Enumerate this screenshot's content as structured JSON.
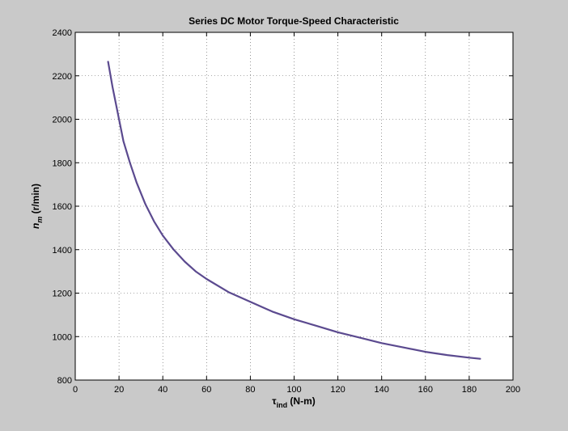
{
  "chart_data": {
    "type": "line",
    "title": "Series DC Motor Torque-Speed Characteristic",
    "xlabel": {
      "symbol": "τ",
      "sub": "ind",
      "unit": " (N-m)"
    },
    "ylabel": {
      "symbol": "n",
      "sub": "m",
      "unit": " (r/min)"
    },
    "xlim": [
      0,
      200
    ],
    "ylim": [
      800,
      2400
    ],
    "xticks": [
      0,
      20,
      40,
      60,
      80,
      100,
      120,
      140,
      160,
      180,
      200
    ],
    "yticks": [
      800,
      1000,
      1200,
      1400,
      1600,
      1800,
      2000,
      2200,
      2400
    ],
    "grid": true,
    "series": [
      {
        "color": "#5b4a8f",
        "x": [
          15,
          17,
          20,
          22,
          25,
          28,
          32,
          36,
          40,
          45,
          50,
          55,
          60,
          70,
          80,
          90,
          100,
          110,
          120,
          130,
          140,
          150,
          160,
          170,
          180,
          185
        ],
        "y": [
          2265,
          2150,
          2000,
          1900,
          1800,
          1710,
          1610,
          1530,
          1465,
          1400,
          1345,
          1300,
          1265,
          1205,
          1160,
          1115,
          1080,
          1050,
          1020,
          995,
          970,
          950,
          930,
          915,
          903,
          898
        ]
      }
    ]
  }
}
